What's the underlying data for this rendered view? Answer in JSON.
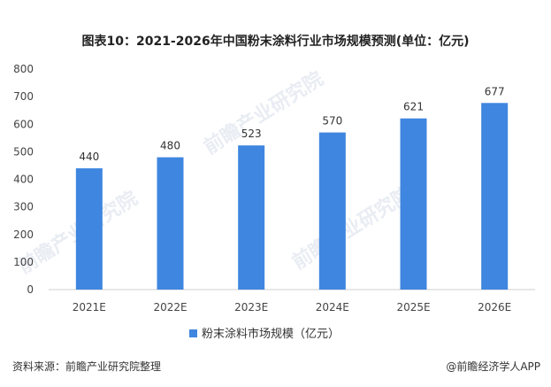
{
  "title": "图表10：2021-2026年中国粉末涂料行业市场规模预测(单位：亿元)",
  "watermark": "前瞻产业研究院",
  "footer": {
    "source": "资料来源：前瞻产业研究院整理",
    "brand": "@前瞻经济学人APP"
  },
  "colors": {
    "bar": "#3f86e0",
    "axis": "#cfcfcf"
  },
  "chart_data": {
    "type": "bar",
    "categories": [
      "2021E",
      "2022E",
      "2023E",
      "2024E",
      "2025E",
      "2026E"
    ],
    "series": [
      {
        "name": "粉末涂料市场规模（亿元）",
        "values": [
          440,
          480,
          523,
          570,
          621,
          677
        ]
      }
    ],
    "ylim": [
      0,
      800
    ],
    "yticks": [
      0,
      100,
      200,
      300,
      400,
      500,
      600,
      700,
      800
    ],
    "grid": false,
    "legend": "bottom"
  }
}
